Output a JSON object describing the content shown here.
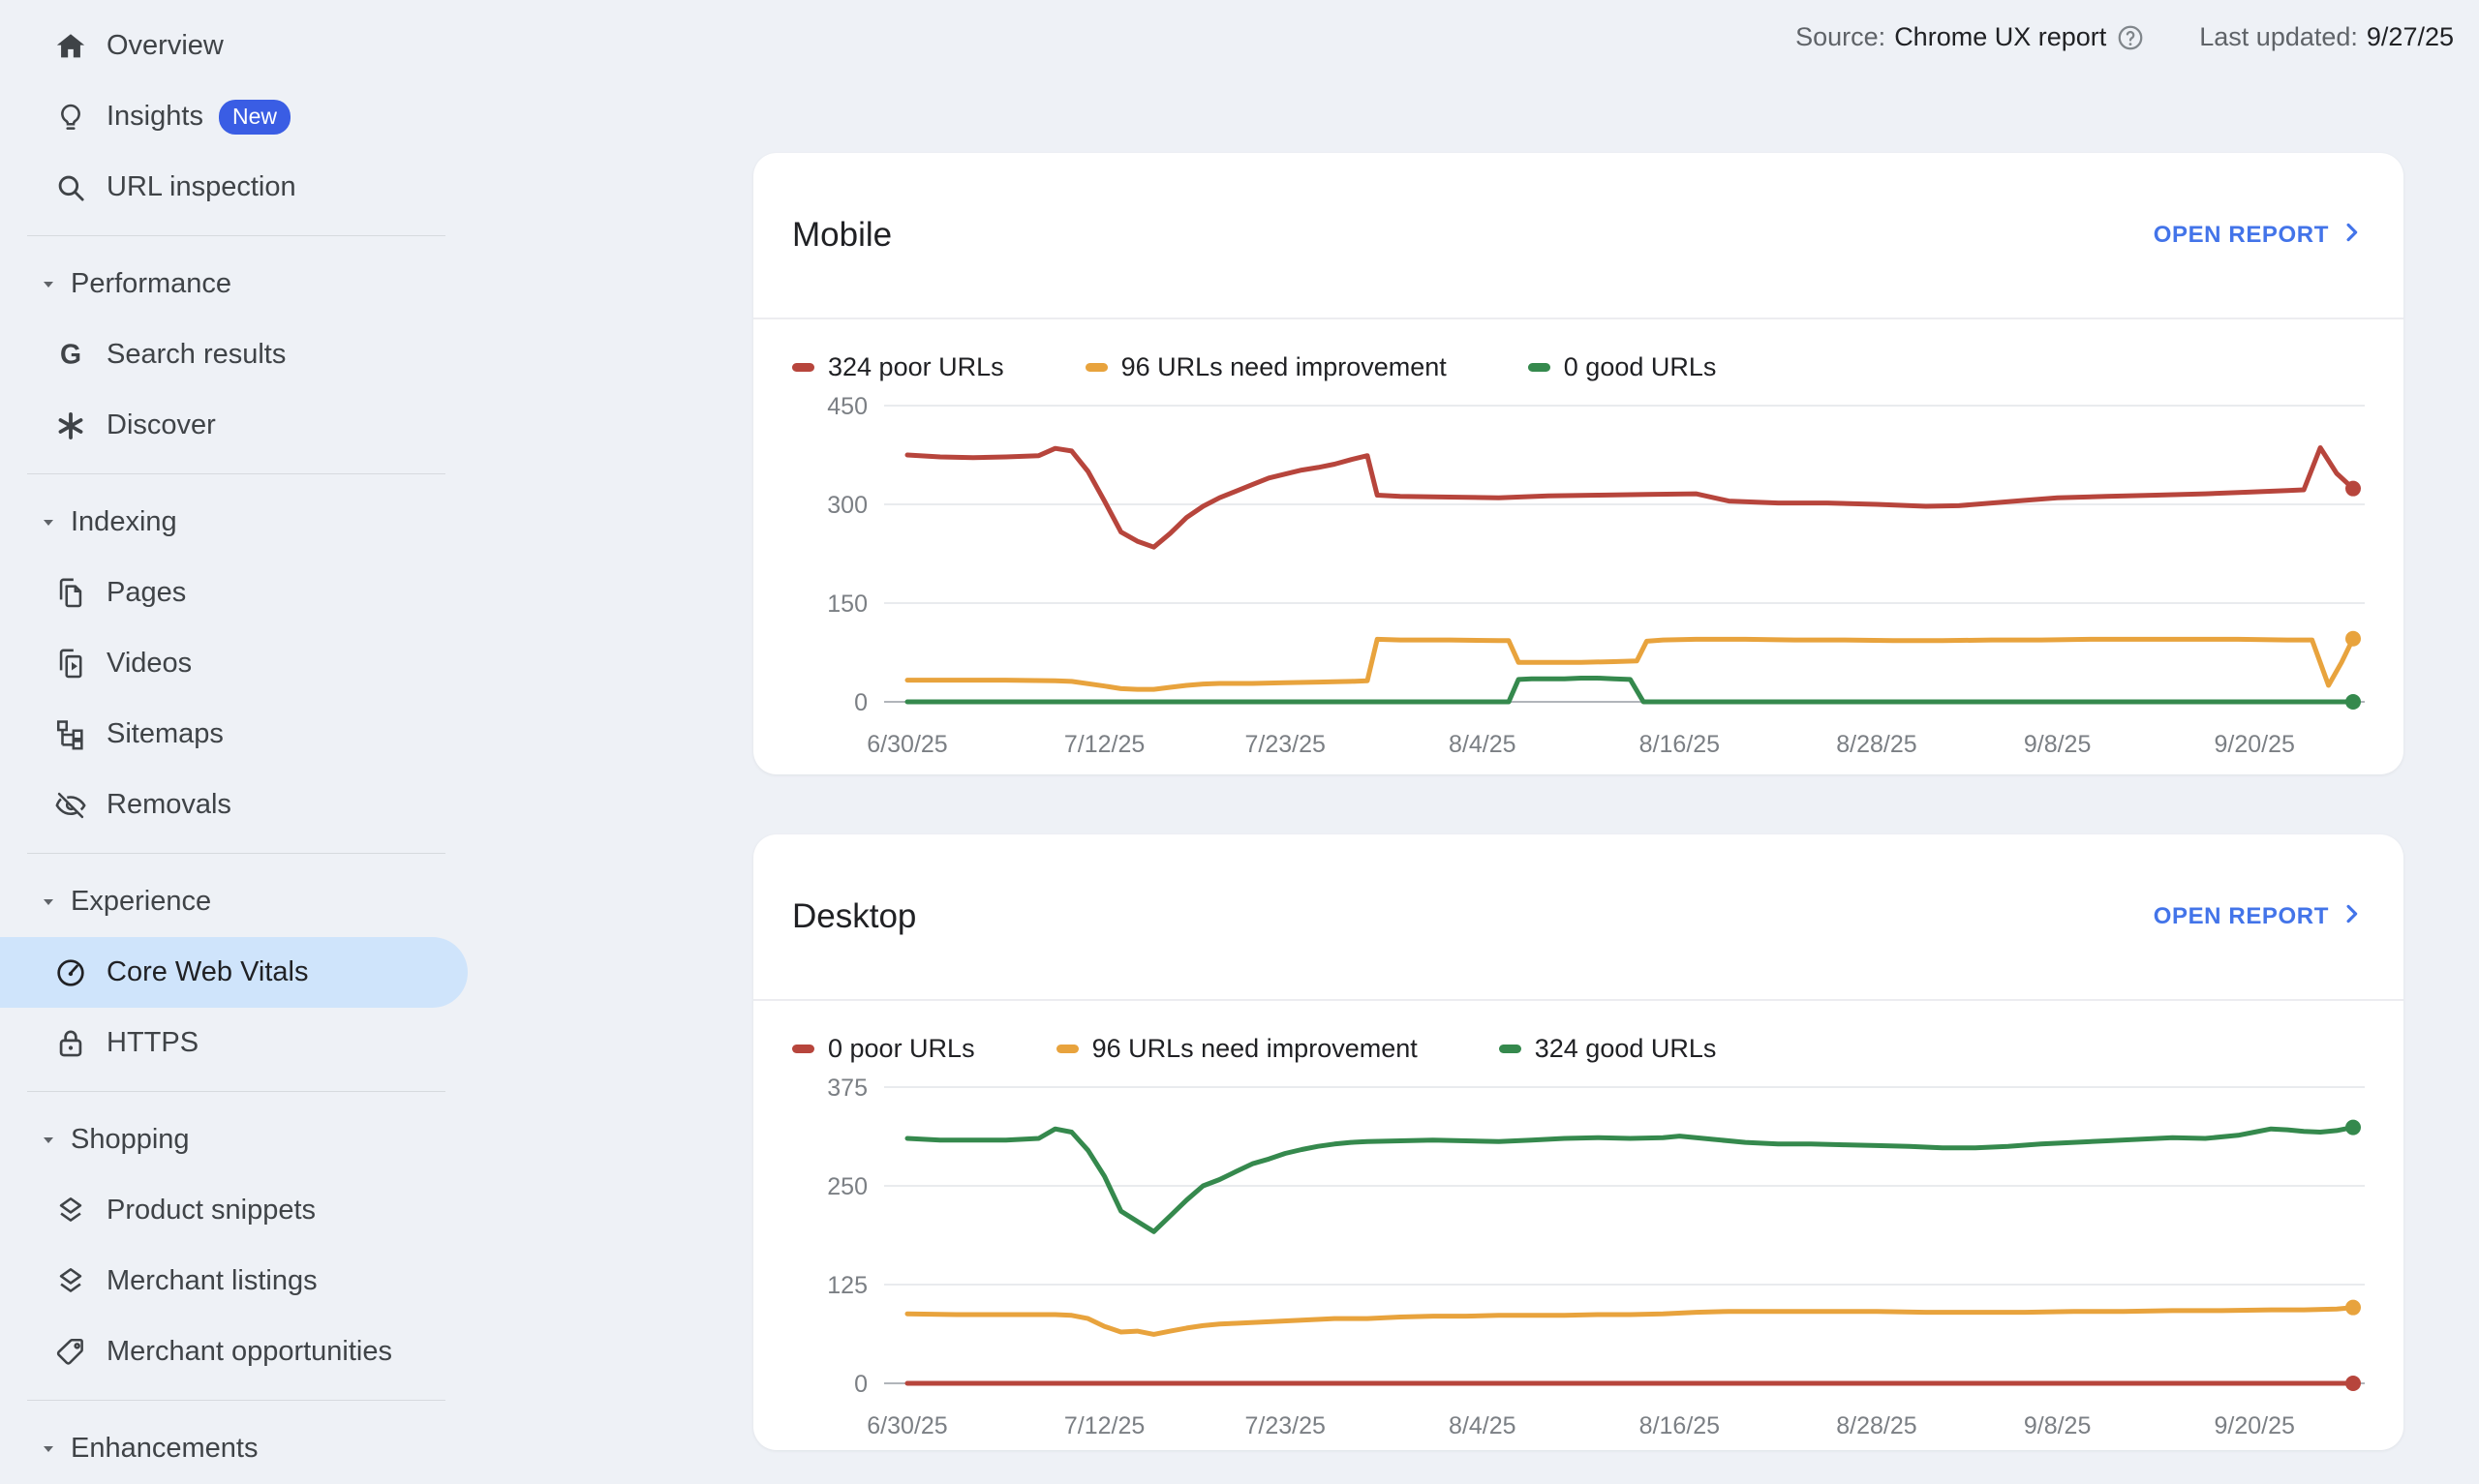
{
  "header": {
    "source_label": "Source:",
    "source_value": "Chrome UX report",
    "help_icon": "help-circle-icon",
    "last_updated_label": "Last updated:",
    "last_updated_value": "9/27/25"
  },
  "colors": {
    "poor": "#b7453c",
    "needs_improvement": "#e8a33d",
    "good": "#35894d",
    "link_blue": "#4374e9",
    "badge_blue": "#3a5de4",
    "selected_bg": "#cfe4fb",
    "page_bg": "#eef1f6"
  },
  "sidebar": {
    "items": [
      {
        "type": "item",
        "id": "overview",
        "icon": "home",
        "label": "Overview"
      },
      {
        "type": "item",
        "id": "insights",
        "icon": "lightbulb",
        "label": "Insights",
        "badge": "New"
      },
      {
        "type": "item",
        "id": "url-inspection",
        "icon": "search",
        "label": "URL inspection"
      },
      {
        "type": "divider"
      },
      {
        "type": "section",
        "id": "performance",
        "label": "Performance"
      },
      {
        "type": "item",
        "id": "search-results",
        "icon": "google-g",
        "label": "Search results"
      },
      {
        "type": "item",
        "id": "discover",
        "icon": "discover-asterisk",
        "label": "Discover"
      },
      {
        "type": "divider"
      },
      {
        "type": "section",
        "id": "indexing",
        "label": "Indexing"
      },
      {
        "type": "item",
        "id": "pages",
        "icon": "pages",
        "label": "Pages"
      },
      {
        "type": "item",
        "id": "videos",
        "icon": "video-pages",
        "label": "Videos"
      },
      {
        "type": "item",
        "id": "sitemaps",
        "icon": "sitemap",
        "label": "Sitemaps"
      },
      {
        "type": "item",
        "id": "removals",
        "icon": "eye-off",
        "label": "Removals"
      },
      {
        "type": "divider"
      },
      {
        "type": "section",
        "id": "experience",
        "label": "Experience"
      },
      {
        "type": "item",
        "id": "core-web-vitals",
        "icon": "speedometer",
        "label": "Core Web Vitals",
        "selected": true
      },
      {
        "type": "item",
        "id": "https",
        "icon": "lock",
        "label": "HTTPS"
      },
      {
        "type": "divider"
      },
      {
        "type": "section",
        "id": "shopping",
        "label": "Shopping"
      },
      {
        "type": "item",
        "id": "product-snippets",
        "icon": "layers",
        "label": "Product snippets"
      },
      {
        "type": "item",
        "id": "merchant-listings",
        "icon": "layers",
        "label": "Merchant listings"
      },
      {
        "type": "item",
        "id": "merchant-opportunities",
        "icon": "tag",
        "label": "Merchant opportunities"
      },
      {
        "type": "divider"
      },
      {
        "type": "section",
        "id": "enhancements",
        "label": "Enhancements"
      }
    ]
  },
  "cards": [
    {
      "id": "mobile",
      "title": "Mobile",
      "open_report_label": "OPEN REPORT",
      "chart_index": 0
    },
    {
      "id": "desktop",
      "title": "Desktop",
      "open_report_label": "OPEN REPORT",
      "chart_index": 1
    }
  ],
  "chart_data": [
    {
      "type": "line",
      "title": "Mobile",
      "ylim": [
        0,
        450
      ],
      "yticks": [
        0,
        150,
        300,
        450
      ],
      "grid": true,
      "legend_position": "top",
      "x_axis": {
        "unit": "date",
        "domain_days": [
          0,
          88
        ],
        "start_date": "6/30/25",
        "end_date": "9/26/25",
        "tick_labels": [
          "6/30/25",
          "7/12/25",
          "7/23/25",
          "8/4/25",
          "8/16/25",
          "8/28/25",
          "9/8/25",
          "9/20/25"
        ],
        "tick_days": [
          0,
          12,
          23,
          35,
          47,
          59,
          70,
          82
        ]
      },
      "series": [
        {
          "name": "324 poor URLs",
          "status": "poor",
          "color": "#b7453c",
          "final_value": 324,
          "points": [
            [
              0,
              375
            ],
            [
              2,
              372
            ],
            [
              4,
              371
            ],
            [
              6,
              372
            ],
            [
              8,
              374
            ],
            [
              9,
              385
            ],
            [
              10,
              381
            ],
            [
              11,
              350
            ],
            [
              12,
              305
            ],
            [
              13,
              258
            ],
            [
              14,
              244
            ],
            [
              15,
              235
            ],
            [
              16,
              256
            ],
            [
              17,
              280
            ],
            [
              18,
              297
            ],
            [
              19,
              310
            ],
            [
              20,
              320
            ],
            [
              21,
              330
            ],
            [
              22,
              340
            ],
            [
              23,
              346
            ],
            [
              24,
              352
            ],
            [
              25,
              356
            ],
            [
              26,
              361
            ],
            [
              27,
              368
            ],
            [
              28,
              374
            ],
            [
              28.6,
              314
            ],
            [
              30,
              312
            ],
            [
              33,
              311
            ],
            [
              36,
              310
            ],
            [
              39,
              313
            ],
            [
              42,
              314
            ],
            [
              45,
              315
            ],
            [
              48,
              316
            ],
            [
              50,
              305
            ],
            [
              53,
              302
            ],
            [
              56,
              302
            ],
            [
              59,
              300
            ],
            [
              62,
              297
            ],
            [
              64,
              298
            ],
            [
              66,
              302
            ],
            [
              68,
              306
            ],
            [
              70,
              310
            ],
            [
              73,
              312
            ],
            [
              76,
              314
            ],
            [
              79,
              316
            ],
            [
              82,
              319
            ],
            [
              84,
              321
            ],
            [
              85,
              322
            ],
            [
              86,
              386
            ],
            [
              87,
              347
            ],
            [
              88,
              324
            ]
          ]
        },
        {
          "name": "96 URLs need improvement",
          "status": "needs_improvement",
          "color": "#e8a33d",
          "final_value": 96,
          "points": [
            [
              0,
              33
            ],
            [
              3,
              33
            ],
            [
              6,
              33
            ],
            [
              9,
              32
            ],
            [
              10,
              31
            ],
            [
              12,
              24
            ],
            [
              13,
              20
            ],
            [
              14,
              19
            ],
            [
              15,
              19
            ],
            [
              16,
              22
            ],
            [
              17,
              25
            ],
            [
              18,
              27
            ],
            [
              19,
              28
            ],
            [
              21,
              28
            ],
            [
              23,
              29
            ],
            [
              25,
              30
            ],
            [
              27,
              31
            ],
            [
              28,
              32
            ],
            [
              28.6,
              95
            ],
            [
              30,
              94
            ],
            [
              33,
              94
            ],
            [
              36,
              93
            ],
            [
              36.6,
              93
            ],
            [
              37.2,
              60
            ],
            [
              39,
              60
            ],
            [
              41,
              60
            ],
            [
              43,
              61
            ],
            [
              44.4,
              62
            ],
            [
              45,
              92
            ],
            [
              46,
              94
            ],
            [
              48,
              95
            ],
            [
              51,
              95
            ],
            [
              54,
              94
            ],
            [
              57,
              94
            ],
            [
              60,
              93
            ],
            [
              63,
              93
            ],
            [
              66,
              94
            ],
            [
              69,
              94
            ],
            [
              72,
              95
            ],
            [
              75,
              95
            ],
            [
              78,
              95
            ],
            [
              81,
              95
            ],
            [
              84,
              94
            ],
            [
              85.5,
              94
            ],
            [
              86.5,
              25
            ],
            [
              87.3,
              60
            ],
            [
              88,
              96
            ]
          ]
        },
        {
          "name": "0 good URLs",
          "status": "good",
          "color": "#35894d",
          "final_value": 0,
          "points": [
            [
              0,
              0
            ],
            [
              36.6,
              0
            ],
            [
              37.2,
              34
            ],
            [
              38,
              35
            ],
            [
              40,
              35
            ],
            [
              41,
              36
            ],
            [
              42,
              36
            ],
            [
              43,
              35
            ],
            [
              44,
              34
            ],
            [
              44.8,
              0
            ],
            [
              88,
              0
            ]
          ]
        }
      ]
    },
    {
      "type": "line",
      "title": "Desktop",
      "ylim": [
        0,
        375
      ],
      "yticks": [
        0,
        125,
        250,
        375
      ],
      "grid": true,
      "legend_position": "top",
      "x_axis": {
        "unit": "date",
        "domain_days": [
          0,
          88
        ],
        "start_date": "6/30/25",
        "end_date": "9/26/25",
        "tick_labels": [
          "6/30/25",
          "7/12/25",
          "7/23/25",
          "8/4/25",
          "8/16/25",
          "8/28/25",
          "9/8/25",
          "9/20/25"
        ],
        "tick_days": [
          0,
          12,
          23,
          35,
          47,
          59,
          70,
          82
        ]
      },
      "series": [
        {
          "name": "0 poor URLs",
          "status": "poor",
          "color": "#b7453c",
          "final_value": 0,
          "points": [
            [
              0,
              0
            ],
            [
              88,
              0
            ]
          ]
        },
        {
          "name": "96 URLs need improvement",
          "status": "needs_improvement",
          "color": "#e8a33d",
          "final_value": 96,
          "points": [
            [
              0,
              88
            ],
            [
              3,
              87
            ],
            [
              6,
              87
            ],
            [
              9,
              87
            ],
            [
              10,
              86
            ],
            [
              11,
              82
            ],
            [
              12,
              72
            ],
            [
              13,
              65
            ],
            [
              14,
              66
            ],
            [
              15,
              62
            ],
            [
              16,
              66
            ],
            [
              17,
              70
            ],
            [
              18,
              73
            ],
            [
              19,
              75
            ],
            [
              20,
              76
            ],
            [
              22,
              78
            ],
            [
              24,
              80
            ],
            [
              26,
              82
            ],
            [
              28,
              82
            ],
            [
              30,
              84
            ],
            [
              32,
              85
            ],
            [
              34,
              85
            ],
            [
              36,
              86
            ],
            [
              38,
              86
            ],
            [
              40,
              86
            ],
            [
              42,
              87
            ],
            [
              44,
              87
            ],
            [
              46,
              88
            ],
            [
              48,
              90
            ],
            [
              50,
              91
            ],
            [
              53,
              91
            ],
            [
              56,
              91
            ],
            [
              59,
              91
            ],
            [
              62,
              90
            ],
            [
              65,
              90
            ],
            [
              68,
              90
            ],
            [
              71,
              91
            ],
            [
              74,
              91
            ],
            [
              77,
              92
            ],
            [
              80,
              92
            ],
            [
              83,
              93
            ],
            [
              85,
              93
            ],
            [
              87,
              94
            ],
            [
              88,
              96
            ]
          ]
        },
        {
          "name": "324 good URLs",
          "status": "good",
          "color": "#35894d",
          "final_value": 324,
          "points": [
            [
              0,
              310
            ],
            [
              2,
              308
            ],
            [
              4,
              308
            ],
            [
              6,
              308
            ],
            [
              8,
              310
            ],
            [
              9,
              322
            ],
            [
              10,
              318
            ],
            [
              11,
              295
            ],
            [
              12,
              262
            ],
            [
              13,
              218
            ],
            [
              14,
              205
            ],
            [
              15,
              192
            ],
            [
              16,
              212
            ],
            [
              17,
              232
            ],
            [
              18,
              250
            ],
            [
              19,
              258
            ],
            [
              20,
              268
            ],
            [
              21,
              278
            ],
            [
              22,
              284
            ],
            [
              23,
              291
            ],
            [
              24,
              296
            ],
            [
              25,
              300
            ],
            [
              26,
              303
            ],
            [
              27,
              305
            ],
            [
              28,
              306
            ],
            [
              30,
              307
            ],
            [
              32,
              308
            ],
            [
              34,
              307
            ],
            [
              36,
              306
            ],
            [
              38,
              308
            ],
            [
              40,
              310
            ],
            [
              42,
              311
            ],
            [
              44,
              310
            ],
            [
              46,
              311
            ],
            [
              47,
              313
            ],
            [
              49,
              309
            ],
            [
              51,
              305
            ],
            [
              53,
              303
            ],
            [
              55,
              303
            ],
            [
              57,
              302
            ],
            [
              59,
              301
            ],
            [
              61,
              300
            ],
            [
              63,
              298
            ],
            [
              65,
              298
            ],
            [
              67,
              300
            ],
            [
              69,
              303
            ],
            [
              71,
              305
            ],
            [
              73,
              307
            ],
            [
              75,
              309
            ],
            [
              77,
              311
            ],
            [
              79,
              310
            ],
            [
              81,
              314
            ],
            [
              82,
              318
            ],
            [
              83,
              322
            ],
            [
              84,
              321
            ],
            [
              85,
              319
            ],
            [
              86,
              318
            ],
            [
              87,
              320
            ],
            [
              88,
              324
            ]
          ]
        }
      ]
    }
  ]
}
